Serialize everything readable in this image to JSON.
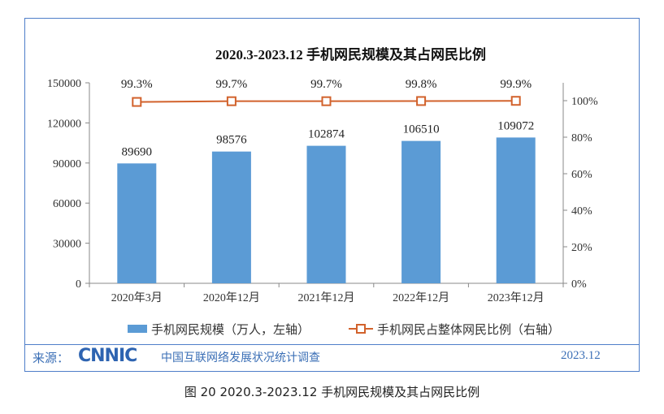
{
  "watermark": "CNNIC",
  "chart_data": {
    "type": "bar+line",
    "title": "2020.3-2023.12 手机网民规模及其占网民比例",
    "categories": [
      "2020年3月",
      "2020年12月",
      "2021年12月",
      "2022年12月",
      "2023年12月"
    ],
    "series": [
      {
        "name": "手机网民规模（万人，左轴）",
        "type": "bar",
        "axis": "left",
        "values": [
          89690,
          98576,
          102874,
          106510,
          109072
        ],
        "labels": [
          "89690",
          "98576",
          "102874",
          "106510",
          "109072"
        ],
        "color": "#5b9bd5"
      },
      {
        "name": "手机网民占整体网民比例（右轴）",
        "type": "line",
        "axis": "right",
        "values": [
          99.3,
          99.7,
          99.7,
          99.8,
          99.9
        ],
        "labels": [
          "99.3%",
          "99.7%",
          "99.7%",
          "99.8%",
          "99.9%"
        ],
        "color": "#d2622c"
      }
    ],
    "left_axis": {
      "ylim": [
        0,
        150000
      ],
      "ticks": [
        "0",
        "30000",
        "60000",
        "90000",
        "120000",
        "150000"
      ]
    },
    "right_axis": {
      "ylim": [
        0,
        110
      ],
      "ticks": [
        "0%",
        "20%",
        "40%",
        "60%",
        "80%",
        "100%"
      ]
    },
    "legend": "bottom"
  },
  "footer": {
    "source_label": "来源：",
    "logo": "CNNIC",
    "survey": "中国互联网络发展状况统计调查",
    "date": "2023.12"
  },
  "caption": "图 20  2020.3-2023.12 手机网民规模及其占网民比例"
}
